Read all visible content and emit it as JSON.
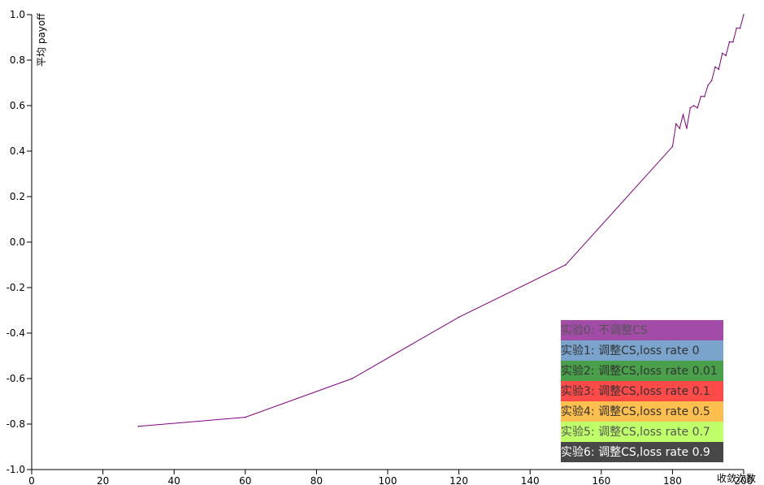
{
  "chart_data": {
    "type": "line",
    "xlabel": "收敛次数",
    "ylabel": "平均 payoff",
    "xlim": [
      0,
      200
    ],
    "ylim": [
      -1.0,
      1.0
    ],
    "x_ticks": [
      "0",
      "20",
      "40",
      "60",
      "80",
      "100",
      "120",
      "140",
      "160",
      "180",
      "200"
    ],
    "y_ticks": [
      "1.0",
      "0.8",
      "0.6",
      "0.4",
      "0.2",
      "0.0",
      "-0.2",
      "-0.4",
      "-0.6",
      "-0.8",
      "-1.0"
    ],
    "grid": false,
    "legend_position": "bottom-right",
    "legend": [
      {
        "label": "实验0: 不调整CS",
        "color": "#a24ca8",
        "text_color": "#555555"
      },
      {
        "label": "实验1: 调整CS,loss rate 0",
        "color": "#7aa4cc",
        "text_color": "#333333"
      },
      {
        "label": "实验2: 调整CS,loss rate 0.01",
        "color": "#4aa04a",
        "text_color": "#333333"
      },
      {
        "label": "实验3: 调整CS,loss rate 0.1",
        "color": "#ff4a4a",
        "text_color": "#333333"
      },
      {
        "label": "实验4: 调整CS,loss rate 0.5",
        "color": "#ffbf4f",
        "text_color": "#333333"
      },
      {
        "label": "实验5: 调整CS,loss rate 0.7",
        "color": "#bfff6a",
        "text_color": "#555555"
      },
      {
        "label": "实验6: 调整CS,loss rate 0.9",
        "color": "#474747",
        "text_color": "#ffffff"
      }
    ],
    "series": [
      {
        "color": "#800080",
        "x": [
          30,
          60,
          90,
          120,
          150,
          180,
          181,
          182,
          183,
          184,
          185,
          186,
          187,
          188,
          189,
          190,
          191,
          192,
          193,
          194,
          195,
          196,
          197,
          198,
          199,
          200
        ],
        "y": [
          -0.81,
          -0.77,
          -0.6,
          -0.33,
          -0.1,
          0.42,
          0.52,
          0.5,
          0.56,
          0.5,
          0.59,
          0.6,
          0.59,
          0.64,
          0.64,
          0.69,
          0.71,
          0.77,
          0.76,
          0.83,
          0.82,
          0.88,
          0.88,
          0.94,
          0.94,
          1.0
        ]
      }
    ]
  }
}
